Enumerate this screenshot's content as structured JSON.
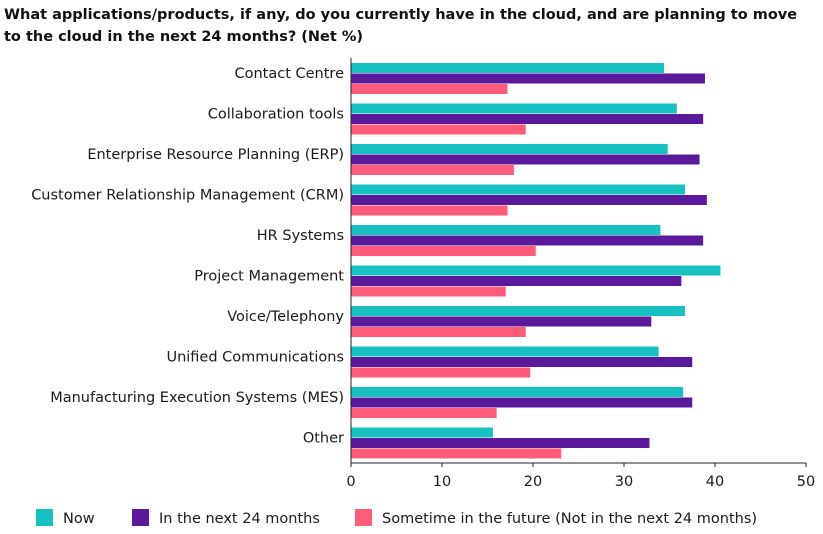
{
  "chart_data": {
    "type": "bar",
    "orientation": "horizontal",
    "title": "What applications/products, if any, do you currently have in the cloud, and are planning to move to the cloud in the next 24 months? (Net %)",
    "categories": [
      "Contact Centre",
      "Collaboration tools",
      "Enterprise Resource Planning (ERP)",
      "Customer Relationship Management (CRM)",
      "HR Systems",
      "Project  Management",
      "Voice/Telephony",
      "Unified Communications",
      "Manufacturing Execution Systems (MES)",
      "Other"
    ],
    "series": [
      {
        "name": "Now",
        "color": "#17c1c1",
        "values": [
          34.4,
          35.8,
          34.8,
          36.7,
          34.0,
          40.6,
          36.7,
          33.8,
          36.5,
          15.6
        ]
      },
      {
        "name": "In the next 24 months",
        "color": "#5b1a9b",
        "values": [
          38.9,
          38.7,
          38.3,
          39.1,
          38.7,
          36.3,
          33.0,
          37.5,
          37.5,
          32.8
        ]
      },
      {
        "name": "Sometime in the future (Not in the next 24 months)",
        "color": "#ff5b7a",
        "values": [
          17.2,
          19.2,
          17.9,
          17.2,
          20.3,
          17.0,
          19.2,
          19.7,
          16.0,
          23.1
        ]
      }
    ],
    "xlim": [
      0,
      50
    ],
    "xticks": [
      0,
      10,
      20,
      30,
      40,
      50
    ],
    "xlabel": "",
    "ylabel": "",
    "grid": false,
    "legend_position": "bottom"
  }
}
